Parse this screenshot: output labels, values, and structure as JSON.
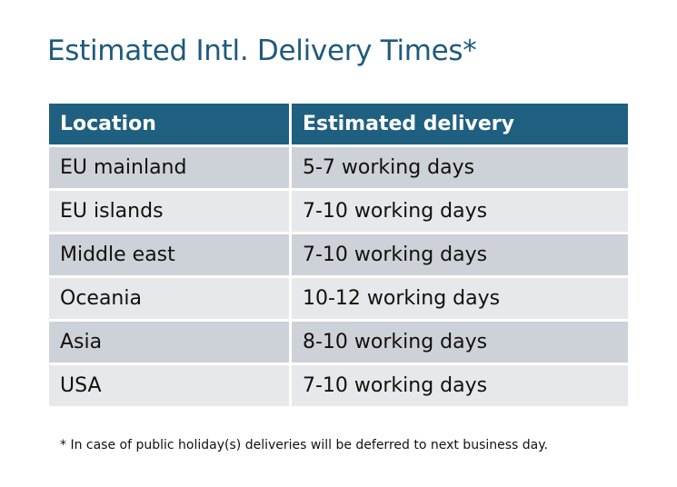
{
  "title": "Estimated Intl. Delivery Times*",
  "table": {
    "headers": [
      "Location",
      "Estimated delivery"
    ],
    "rows": [
      [
        "EU mainland",
        "5-7 working days"
      ],
      [
        "EU islands",
        "7-10 working days"
      ],
      [
        "Middle east",
        "7-10 working days"
      ],
      [
        "Oceania",
        "10-12 working days"
      ],
      [
        "Asia",
        "8-10 working days"
      ],
      [
        "USA",
        "7-10 working days"
      ]
    ]
  },
  "footnote": "* In case of public holiday(s) deliveries will be deferred to next business day.",
  "colors": {
    "header": "#1f6080",
    "title": "#1f5a7c",
    "row_odd": "#cdd1d8",
    "row_even": "#e6e8eb"
  }
}
